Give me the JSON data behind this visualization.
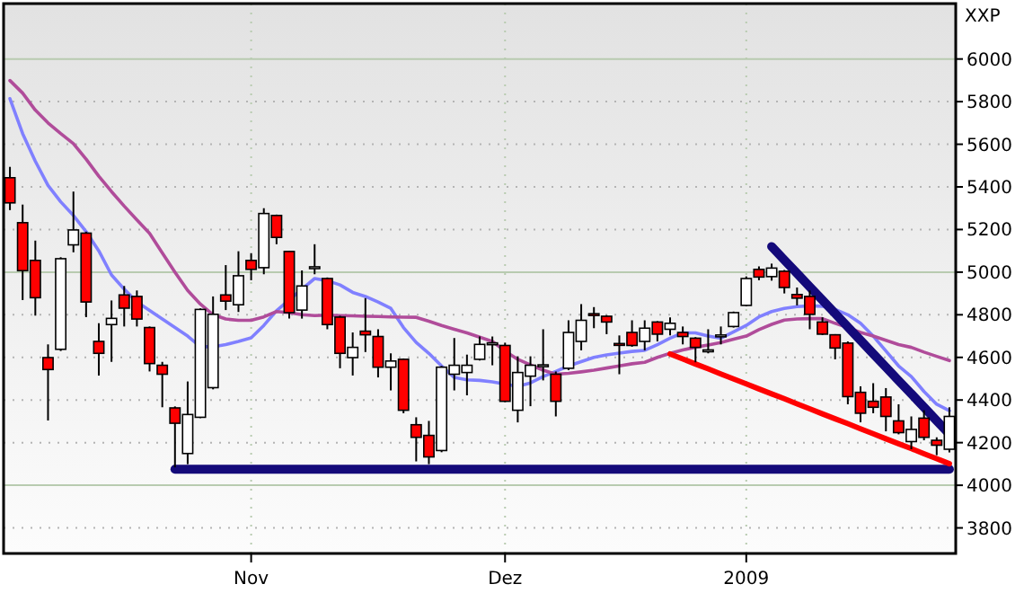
{
  "chart_data": {
    "type": "candlestick",
    "ylabel": "XXP",
    "grid": true,
    "ylim": [
      3680,
      6260
    ],
    "yticks": [
      3800,
      4000,
      4200,
      4400,
      4600,
      4800,
      5000,
      5200,
      5400,
      5600,
      5800,
      6000
    ],
    "categories": [
      null,
      null,
      null,
      null,
      null,
      null,
      null,
      null,
      null,
      null,
      null,
      null,
      null,
      null,
      null,
      null,
      null,
      null,
      null,
      "Nov",
      null,
      null,
      null,
      null,
      null,
      null,
      null,
      null,
      null,
      null,
      null,
      null,
      null,
      null,
      null,
      null,
      null,
      null,
      null,
      "Dez",
      null,
      null,
      null,
      null,
      null,
      null,
      null,
      null,
      null,
      null,
      null,
      null,
      null,
      null,
      null,
      null,
      null,
      null,
      "2009",
      null,
      null,
      null,
      null,
      null,
      null,
      null,
      null,
      null,
      null,
      null,
      null,
      null,
      null,
      null,
      null
    ],
    "ohlc": [
      [
        5443,
        5494,
        5291,
        5325
      ],
      [
        5232,
        5317,
        4869,
        5007
      ],
      [
        5055,
        5148,
        4796,
        4880
      ],
      [
        4599,
        4661,
        4304,
        4543
      ],
      [
        4638,
        5070,
        4630,
        5063
      ],
      [
        5128,
        5378,
        5093,
        5198
      ],
      [
        5183,
        5190,
        4789,
        4860
      ],
      [
        4675,
        4760,
        4515,
        4619
      ],
      [
        4754,
        4867,
        4579,
        4783
      ],
      [
        4893,
        4935,
        4745,
        4831
      ],
      [
        4886,
        4914,
        4745,
        4780
      ],
      [
        4740,
        4745,
        4534,
        4571
      ],
      [
        4563,
        4579,
        4366,
        4521
      ],
      [
        4363,
        4370,
        4084,
        4291
      ],
      [
        4149,
        4487,
        4099,
        4332
      ],
      [
        4319,
        4830,
        4315,
        4825
      ],
      [
        4458,
        4886,
        4450,
        4802
      ],
      [
        4893,
        5033,
        4822,
        4864
      ],
      [
        4847,
        5098,
        4813,
        4983
      ],
      [
        5055,
        5089,
        4962,
        5013
      ],
      [
        5021,
        5300,
        4990,
        5275
      ],
      [
        5266,
        5270,
        5131,
        5163
      ],
      [
        5097,
        5100,
        4782,
        4810
      ],
      [
        4822,
        5008,
        4782,
        4935
      ],
      [
        5020,
        5131,
        4990,
        5025
      ],
      [
        4970,
        4975,
        4732,
        4754
      ],
      [
        4789,
        4795,
        4549,
        4619
      ],
      [
        4599,
        4717,
        4515,
        4647
      ],
      [
        4723,
        4878,
        4625,
        4706
      ],
      [
        4698,
        4732,
        4506,
        4554
      ],
      [
        4554,
        4619,
        4445,
        4583
      ],
      [
        4591,
        4595,
        4338,
        4352
      ],
      [
        4284,
        4319,
        4112,
        4225
      ],
      [
        4234,
        4302,
        4099,
        4133
      ],
      [
        4163,
        4560,
        4155,
        4554
      ],
      [
        4521,
        4691,
        4445,
        4563
      ],
      [
        4529,
        4613,
        4422,
        4563
      ],
      [
        4591,
        4698,
        4585,
        4661
      ],
      [
        4660,
        4698,
        4563,
        4668
      ],
      [
        4656,
        4669,
        4390,
        4394
      ],
      [
        4352,
        4605,
        4295,
        4529
      ],
      [
        4512,
        4605,
        4371,
        4563
      ],
      [
        4560,
        4732,
        4492,
        4565
      ],
      [
        4521,
        4534,
        4323,
        4394
      ],
      [
        4549,
        4774,
        4540,
        4717
      ],
      [
        4675,
        4850,
        4633,
        4774
      ],
      [
        4805,
        4836,
        4737,
        4800
      ],
      [
        4793,
        4798,
        4709,
        4766
      ],
      [
        4665,
        4703,
        4521,
        4660
      ],
      [
        4717,
        4774,
        4650,
        4656
      ],
      [
        4675,
        4774,
        4633,
        4737
      ],
      [
        4766,
        4770,
        4675,
        4709
      ],
      [
        4732,
        4788,
        4703,
        4760
      ],
      [
        4717,
        4745,
        4661,
        4698
      ],
      [
        4690,
        4695,
        4577,
        4647
      ],
      [
        4630,
        4732,
        4619,
        4635
      ],
      [
        4700,
        4745,
        4661,
        4705
      ],
      [
        4745,
        4815,
        4740,
        4810
      ],
      [
        4844,
        4980,
        4840,
        4970
      ],
      [
        5013,
        5027,
        4962,
        4977
      ],
      [
        4979,
        5040,
        4960,
        5019
      ],
      [
        5004,
        5010,
        4900,
        4928
      ],
      [
        4895,
        4928,
        4844,
        4878
      ],
      [
        4886,
        4914,
        4732,
        4802
      ],
      [
        4766,
        4788,
        4705,
        4709
      ],
      [
        4706,
        4709,
        4591,
        4644
      ],
      [
        4667,
        4675,
        4380,
        4416
      ],
      [
        4436,
        4464,
        4295,
        4338
      ],
      [
        4394,
        4479,
        4338,
        4366
      ],
      [
        4414,
        4456,
        4253,
        4323
      ],
      [
        4302,
        4380,
        4239,
        4247
      ],
      [
        4205,
        4323,
        4169,
        4262
      ],
      [
        4315,
        4352,
        4211,
        4225
      ],
      [
        4211,
        4225,
        4141,
        4188
      ],
      [
        4169,
        4366,
        4154,
        4323
      ]
    ],
    "colors": [
      "#ff0000",
      "#ff0000",
      "#ff0000",
      "#ff0000",
      "#ffffff",
      "#ffffff",
      "#ff0000",
      "#ff0000",
      "#ffffff",
      "#ff0000",
      "#ff0000",
      "#ff0000",
      "#ff0000",
      "#ff0000",
      "#ffffff",
      "#ffffff",
      "#ffffff",
      "#ff0000",
      "#ffffff",
      "#ff0000",
      "#ffffff",
      "#ff0000",
      "#ff0000",
      "#ffffff",
      "#ffffff",
      "#ff0000",
      "#ff0000",
      "#ffffff",
      "#ff0000",
      "#ff0000",
      "#ffffff",
      "#ff0000",
      "#ff0000",
      "#ff0000",
      "#ffffff",
      "#ffffff",
      "#ffffff",
      "#ffffff",
      "#ffffff",
      "#ff0000",
      "#ffffff",
      "#ffffff",
      "#ffffff",
      "#ff0000",
      "#ffffff",
      "#ffffff",
      "#ff0000",
      "#ff0000",
      "#ff0000",
      "#ff0000",
      "#ffffff",
      "#ff0000",
      "#ffffff",
      "#ff0000",
      "#ff0000",
      "#ffffff",
      "#ffffff",
      "#ffffff",
      "#ffffff",
      "#ff0000",
      "#ffffff",
      "#ff0000",
      "#ff0000",
      "#ff0000",
      "#ff0000",
      "#ff0000",
      "#ff0000",
      "#ff0000",
      "#ff0000",
      "#ff0000",
      "#ff0000",
      "#ffffff",
      "#ff0000",
      "#ff0000",
      "#ffffff"
    ],
    "series": [
      {
        "type": "line",
        "color": "#8080ff",
        "values": [
          5814,
          5650,
          5520,
          5407,
          5330,
          5266,
          5190,
          5100,
          4987,
          4920,
          4860,
          4820,
          4780,
          4740,
          4700,
          4650,
          4650,
          4660,
          4675,
          4692,
          4750,
          4819,
          4870,
          4920,
          4970,
          4960,
          4940,
          4905,
          4886,
          4860,
          4830,
          4740,
          4670,
          4619,
          4560,
          4506,
          4495,
          4492,
          4485,
          4475,
          4464,
          4480,
          4510,
          4534,
          4560,
          4580,
          4600,
          4612,
          4620,
          4628,
          4633,
          4660,
          4690,
          4715,
          4715,
          4700,
          4690,
          4720,
          4750,
          4790,
          4815,
          4830,
          4838,
          4842,
          4840,
          4825,
          4800,
          4760,
          4700,
          4630,
          4560,
          4510,
          4440,
          4380,
          4350
        ]
      },
      {
        "type": "line",
        "color": "#b04c9a",
        "values": [
          5899,
          5840,
          5760,
          5700,
          5650,
          5603,
          5530,
          5450,
          5378,
          5310,
          5245,
          5182,
          5090,
          5000,
          4914,
          4850,
          4800,
          4780,
          4774,
          4774,
          4790,
          4815,
          4810,
          4800,
          4796,
          4798,
          4796,
          4795,
          4793,
          4792,
          4790,
          4789,
          4788,
          4770,
          4750,
          4732,
          4715,
          4695,
          4675,
          4630,
          4591,
          4565,
          4540,
          4521,
          4525,
          4532,
          4540,
          4550,
          4560,
          4570,
          4577,
          4600,
          4619,
          4635,
          4648,
          4658,
          4670,
          4685,
          4700,
          4730,
          4755,
          4775,
          4780,
          4782,
          4782,
          4760,
          4740,
          4717,
          4700,
          4680,
          4660,
          4647,
          4625,
          4605,
          4585
        ]
      },
      {
        "type": "line",
        "color": "#140a7a",
        "values": [
          null,
          null,
          null,
          null,
          null,
          null,
          null,
          null,
          null,
          null,
          null,
          null,
          null,
          4075,
          4075,
          4075,
          4075,
          4075,
          4075,
          4075,
          4075,
          4075,
          4075,
          4075,
          4075,
          4075,
          4075,
          4075,
          4075,
          4075,
          4075,
          4075,
          4075,
          4075,
          4075,
          4075,
          4075,
          4075,
          4075,
          4075,
          4075,
          4075,
          4075,
          4075,
          4075,
          4075,
          4075,
          4075,
          4075,
          4075,
          4075,
          4075,
          4075,
          4075,
          4075,
          4075,
          4075,
          4075,
          4075,
          4075,
          4075,
          4075,
          4075,
          4075,
          4075,
          4075,
          4075,
          4075,
          4075,
          4075,
          4075,
          4075,
          4075,
          4075,
          4075
        ]
      },
      {
        "type": "line",
        "color": "#140a7a",
        "values": [
          null,
          null,
          null,
          null,
          null,
          null,
          null,
          null,
          null,
          null,
          null,
          null,
          null,
          null,
          null,
          null,
          null,
          null,
          null,
          null,
          null,
          null,
          null,
          null,
          null,
          null,
          null,
          null,
          null,
          null,
          null,
          null,
          null,
          null,
          null,
          null,
          null,
          null,
          null,
          null,
          null,
          null,
          null,
          null,
          null,
          null,
          null,
          null,
          null,
          null,
          null,
          null,
          null,
          null,
          null,
          null,
          null,
          null,
          null,
          null,
          5120,
          5057,
          4994,
          4931,
          4869,
          4806,
          4743,
          4680,
          4617,
          4554,
          4491,
          4429,
          4366,
          4303,
          4240
        ]
      },
      {
        "type": "line",
        "color": "#ff0000",
        "values": [
          null,
          null,
          null,
          null,
          null,
          null,
          null,
          null,
          null,
          null,
          null,
          null,
          null,
          null,
          null,
          null,
          null,
          null,
          null,
          null,
          null,
          null,
          null,
          null,
          null,
          null,
          null,
          null,
          null,
          null,
          null,
          null,
          null,
          null,
          null,
          null,
          null,
          null,
          null,
          null,
          null,
          null,
          null,
          null,
          null,
          null,
          null,
          null,
          null,
          null,
          null,
          null,
          4616,
          4593,
          4569,
          4546,
          4522,
          4499,
          4476,
          4452,
          4429,
          4406,
          4382,
          4359,
          4335,
          4312,
          4289,
          4265,
          4242,
          4218,
          4195,
          4172,
          4148,
          4125,
          4101
        ]
      }
    ]
  }
}
